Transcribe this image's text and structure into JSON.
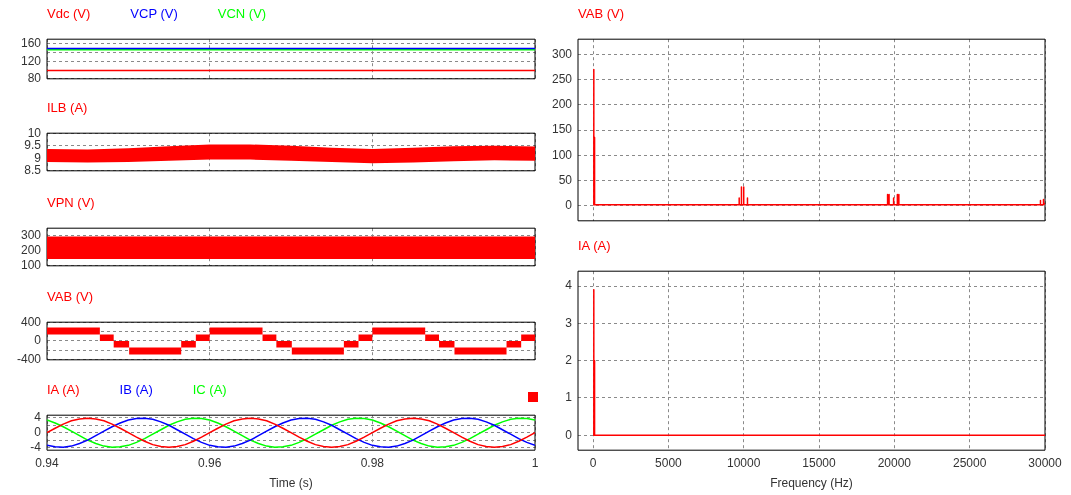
{
  "chart_data": [
    {
      "type": "line",
      "legend": "top left",
      "grid": true,
      "tick_labels": "y",
      "xlim": [
        0.94,
        1
      ],
      "xticks": [
        0.94,
        0.96,
        0.98,
        1
      ],
      "ylim": [
        80,
        170
      ],
      "yticks": [
        80,
        120,
        {
          "value": 140,
          "label": null
        },
        160
      ],
      "series": [
        {
          "name": "Vdc (V)",
          "color": "#ff0000",
          "x": [
            0.94,
            1
          ],
          "values": [
            99,
            99
          ]
        },
        {
          "name": "VCP (V)",
          "color": "#0000ff",
          "x": [
            0.94,
            1
          ],
          "values": [
            149,
            149
          ]
        },
        {
          "name": "VCN (V)",
          "color": "#00ff00",
          "x": [
            0.94,
            1
          ],
          "values": [
            146,
            146
          ]
        }
      ]
    },
    {
      "type": "line",
      "grid": true,
      "tick_labels": "y",
      "xlim": [
        0.94,
        1
      ],
      "xticks": [
        0.94,
        0.96,
        0.98,
        1
      ],
      "ylim": [
        8.5,
        10
      ],
      "yticks": [
        8.5,
        9,
        9.5,
        10
      ],
      "x": [
        0.94,
        0.945,
        0.95,
        0.955,
        0.96,
        0.965,
        0.97,
        0.975,
        0.98,
        0.985,
        0.99,
        0.995,
        1
      ],
      "series": [
        {
          "name": "ILB (A)",
          "color": "#ff0000",
          "values": [
            null,
            null,
            null,
            null,
            null,
            null,
            null,
            null,
            null,
            null,
            null,
            null,
            null
          ],
          "lower": [
            8.85,
            8.83,
            8.85,
            8.9,
            8.95,
            8.95,
            8.9,
            8.85,
            8.8,
            8.83,
            8.88,
            8.92,
            8.9
          ],
          "upper": [
            9.37,
            9.35,
            9.4,
            9.48,
            9.55,
            9.55,
            9.5,
            9.42,
            9.37,
            9.42,
            9.48,
            9.5,
            9.47
          ]
        }
      ]
    },
    {
      "type": "line",
      "grid": true,
      "tick_labels": "y",
      "xlim": [
        0.94,
        1
      ],
      "xticks": [
        0.94,
        0.96,
        0.98,
        1
      ],
      "ylim": [
        100,
        350
      ],
      "yticks": [
        100,
        200,
        300
      ],
      "series": [
        {
          "name": "VPN (V)",
          "color": "#ff0000",
          "x": [
            0.94,
            1
          ],
          "values": [
            null,
            null
          ],
          "lower": [
            145,
            145
          ],
          "upper": [
            295,
            295
          ]
        }
      ]
    },
    {
      "type": "line",
      "grid": true,
      "tick_labels": "y",
      "xlim": [
        0.94,
        1
      ],
      "xticks": [
        0.94,
        0.96,
        0.98,
        1
      ],
      "ylim": [
        -400,
        400
      ],
      "yticks": [
        -400,
        {
          "value": -200,
          "label": null
        },
        0,
        {
          "value": 200,
          "label": null
        },
        400
      ],
      "x": [
        0.94,
        0.9465,
        0.9465,
        0.9482,
        0.9482,
        0.9501,
        0.9501,
        0.9565,
        0.9565,
        0.9583,
        0.9583,
        0.96,
        0.96,
        0.9665,
        0.9665,
        0.9682,
        0.9682,
        0.9701,
        0.9701,
        0.9765,
        0.9765,
        0.9783,
        0.9783,
        0.98,
        0.98,
        0.9865,
        0.9865,
        0.9882,
        0.9882,
        0.9901,
        0.9901,
        0.9965,
        0.9965,
        0.9983,
        0.9983,
        1
      ],
      "series": [
        {
          "name": "VAB (V)",
          "color": "#ff0000",
          "values": [
            null,
            null,
            null,
            null,
            null,
            null,
            null,
            null,
            null,
            null,
            null,
            null,
            null,
            null,
            null,
            null,
            null,
            null,
            null,
            null,
            null,
            null,
            null,
            null,
            null,
            null,
            null,
            null,
            null,
            null,
            null,
            null,
            null,
            null,
            null,
            null
          ],
          "lower": [
            140,
            140,
            0,
            0,
            -140,
            -140,
            -285,
            -285,
            -140,
            -140,
            0,
            0,
            140,
            140,
            0,
            0,
            -140,
            -140,
            -285,
            -285,
            -140,
            -140,
            0,
            0,
            140,
            140,
            0,
            0,
            -140,
            -140,
            -285,
            -285,
            -140,
            -140,
            0,
            0
          ],
          "upper": [
            285,
            285,
            140,
            140,
            0,
            0,
            -140,
            -140,
            0,
            0,
            140,
            140,
            285,
            285,
            140,
            140,
            0,
            0,
            -140,
            -140,
            0,
            0,
            140,
            140,
            285,
            285,
            140,
            140,
            0,
            0,
            -140,
            -140,
            0,
            0,
            140,
            140
          ]
        }
      ]
    },
    {
      "type": "line",
      "legend": "top left",
      "grid": true,
      "xlabel": "Time (s)",
      "xlim": [
        0.94,
        1
      ],
      "xticks": [
        0.94,
        0.96,
        0.98,
        1
      ],
      "ylim": [
        -4.7,
        4.7
      ],
      "yticks": [
        -4,
        {
          "value": -2,
          "label": null
        },
        0,
        {
          "value": 2,
          "label": null
        },
        4
      ],
      "x": [
        0.94,
        0.941,
        0.942,
        0.943,
        0.944,
        0.945,
        0.946,
        0.947,
        0.948,
        0.949,
        0.95,
        0.951,
        0.952,
        0.953,
        0.954,
        0.955,
        0.956,
        0.957,
        0.958,
        0.959,
        0.96,
        0.961,
        0.962,
        0.963,
        0.964,
        0.965,
        0.966,
        0.967,
        0.968,
        0.969,
        0.97,
        0.971,
        0.972,
        0.973,
        0.974,
        0.975,
        0.976,
        0.977,
        0.978,
        0.979,
        0.98,
        0.981,
        0.982,
        0.983,
        0.984,
        0.985,
        0.986,
        0.987,
        0.988,
        0.989,
        0.99,
        0.991,
        0.992,
        0.993,
        0.994,
        0.995,
        0.996,
        0.997,
        0.998,
        0.999,
        1
      ],
      "series": [
        {
          "name": "IA (A)",
          "color": "#ff0000",
          "values": [
            0,
            1.2,
            2.3,
            3.2,
            3.7,
            3.9,
            3.7,
            3.2,
            2.3,
            1.2,
            0,
            -1.2,
            -2.3,
            -3.2,
            -3.7,
            -3.9,
            -3.7,
            -3.2,
            -2.3,
            -1.2,
            0,
            1.2,
            2.3,
            3.2,
            3.7,
            3.9,
            3.7,
            3.2,
            2.3,
            1.2,
            0,
            -1.2,
            -2.3,
            -3.2,
            -3.7,
            -3.9,
            -3.7,
            -3.2,
            -2.3,
            -1.2,
            0,
            1.2,
            2.3,
            3.2,
            3.7,
            3.9,
            3.7,
            3.2,
            2.3,
            1.2,
            0,
            -1.2,
            -2.3,
            -3.2,
            -3.7,
            -3.9,
            -3.7,
            -3.2,
            -2.3,
            -1.2,
            0
          ]
        },
        {
          "name": "IB (A)",
          "color": "#0000ff",
          "values": [
            -3.4,
            -3.8,
            -3.9,
            -3.6,
            -2.9,
            -2.0,
            -0.8,
            0.4,
            1.6,
            2.6,
            3.4,
            3.8,
            3.9,
            3.6,
            2.9,
            2.0,
            0.8,
            -0.4,
            -1.6,
            -2.6,
            -3.4,
            -3.8,
            -3.9,
            -3.6,
            -2.9,
            -2.0,
            -0.8,
            0.4,
            1.6,
            2.6,
            3.4,
            3.8,
            3.9,
            3.6,
            2.9,
            2.0,
            0.8,
            -0.4,
            -1.6,
            -2.6,
            -3.4,
            -3.8,
            -3.9,
            -3.6,
            -2.9,
            -2.0,
            -0.8,
            0.4,
            1.6,
            2.6,
            3.4,
            3.8,
            3.9,
            3.6,
            2.9,
            2.0,
            0.8,
            -0.4,
            -1.6,
            -2.6,
            -3.4
          ]
        },
        {
          "name": "IC (A)",
          "color": "#00ff00",
          "values": [
            3.4,
            2.6,
            1.6,
            0.4,
            -0.8,
            -2.0,
            -2.9,
            -3.6,
            -3.9,
            -3.8,
            -3.4,
            -2.6,
            -1.6,
            -0.4,
            0.8,
            2.0,
            2.9,
            3.6,
            3.9,
            3.8,
            3.4,
            2.6,
            1.6,
            0.4,
            -0.8,
            -2.0,
            -2.9,
            -3.6,
            -3.9,
            -3.8,
            -3.4,
            -2.6,
            -1.6,
            -0.4,
            0.8,
            2.0,
            2.9,
            3.6,
            3.9,
            3.8,
            3.4,
            2.6,
            1.6,
            0.4,
            -0.8,
            -2.0,
            -2.9,
            -3.6,
            -3.9,
            -3.8,
            -3.4,
            -2.6,
            -1.6,
            -0.4,
            0.8,
            2.0,
            2.9,
            3.6,
            3.9,
            3.8,
            3.4
          ]
        }
      ]
    },
    {
      "type": "line",
      "legend": "top left",
      "grid": true,
      "tick_labels": "y",
      "xlim": [
        -1000,
        30000
      ],
      "xticks": [
        0,
        5000,
        10000,
        15000,
        20000,
        25000,
        30000
      ],
      "ylim": [
        -30,
        330
      ],
      "yticks": [
        0,
        50,
        100,
        150,
        200,
        250,
        300
      ],
      "series": [
        {
          "name": "VAB (V)",
          "color": "#ff0000",
          "x": [
            0,
            50,
            50,
            50,
            100,
            100,
            100,
            9000,
            9700,
            9700,
            9700,
            9850,
            9850,
            9850,
            10000,
            10000,
            10000,
            10250,
            10250,
            10250,
            19550,
            19550,
            19550,
            19650,
            19650,
            19650,
            19950,
            19950,
            19950,
            20200,
            20200,
            20200,
            20300,
            20300,
            20300,
            29700,
            29700,
            29700,
            29900,
            29900,
            29900,
            30000
          ],
          "values": [
            2,
            2,
            270,
            2,
            2,
            135,
            2,
            2,
            2,
            15,
            2,
            2,
            37,
            2,
            2,
            37,
            2,
            2,
            15,
            2,
            2,
            22,
            2,
            2,
            22,
            2,
            2,
            15,
            2,
            2,
            22,
            2,
            2,
            22,
            2,
            2,
            10,
            2,
            2,
            12,
            2,
            5
          ]
        }
      ]
    },
    {
      "type": "line",
      "legend": "top left",
      "grid": true,
      "xlabel": "Frequency (Hz)",
      "xlim": [
        -1000,
        30000
      ],
      "xticks": [
        0,
        5000,
        10000,
        15000,
        20000,
        25000,
        30000
      ],
      "ylim": [
        -0.4,
        4.4
      ],
      "yticks": [
        0,
        1,
        2,
        3,
        4
      ],
      "series": [
        {
          "name": "IA (A)",
          "color": "#ff0000",
          "x": [
            0,
            50,
            50,
            50,
            100,
            100,
            100,
            30000
          ],
          "values": [
            0,
            0,
            3.9,
            0,
            0,
            2,
            0,
            0
          ]
        }
      ]
    }
  ]
}
